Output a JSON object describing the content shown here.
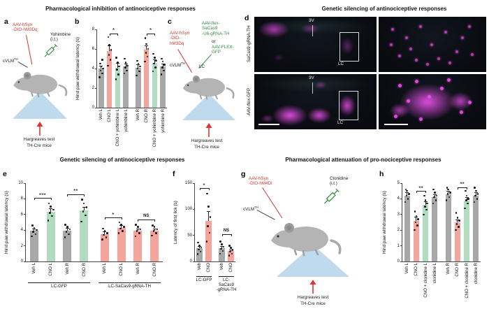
{
  "sections": {
    "top_left_title": "Pharmacological inhibition of antinociceptive responses",
    "top_right_title": "Genetic silencing of antinociceptive responses",
    "bottom_left_title": "Genetic silencing of antinociceptive responses",
    "bottom_right_title": "Pharmacological attenuation of pro-nociceptive responses"
  },
  "panel_letters": {
    "a": "a",
    "b": "b",
    "c": "c",
    "d": "d",
    "e": "e",
    "f": "f",
    "g": "g",
    "h": "h"
  },
  "colors": {
    "bar_gray": "#a8a8a8",
    "bar_red": "#f2a49d",
    "bar_green": "#b2dcc0",
    "accent_red": "#cf3a2f",
    "accent_green": "#2f8f3f",
    "platform_blue": "#bfdaec",
    "magenta": "#e84fe8"
  },
  "diagrams": {
    "a": {
      "virus": "AAV-hSyn\n-DIO-hM3Dq",
      "site": "cVLM",
      "site_sup": "TH",
      "drug": "Yohimbine\n(i.t.)",
      "test": "Hargreaves test",
      "mice": "TH-Cre mice"
    },
    "c": {
      "virus_red": "AAV-hSyn\n-DIO-\nhM3Dq",
      "virus_green": "AAV-flex-\nSaCas9\n-U6-gRNA-TH",
      "or_label": "or",
      "virus_green2": "AAV-FLEX-\nGFP",
      "site": "cVLM",
      "site_sup": "TH",
      "lc": "LC",
      "test": "Hargreaves test",
      "mice": "TH-Cre mice"
    },
    "g": {
      "virus": "AAV-hSyn\n-DIO-hM4Di",
      "site": "cVLM",
      "site_sup": "TH",
      "drug": "Clonidine\n(i.t.)",
      "test": "Hargreaves test",
      "mice": "TH-Cre mice"
    }
  },
  "microscopy": {
    "row1_label": "SaCas9-gRNA-TH",
    "row2_label": "AAV-flex-GFP",
    "labels": {
      "v3": "3V",
      "lc": "LC"
    }
  },
  "chart_data": [
    {
      "id": "b",
      "type": "bar",
      "ylabel": "Hind paw withdrawal latency (s)",
      "ylim": [
        0,
        8
      ],
      "yticks": [
        0,
        2,
        4,
        6,
        8
      ],
      "categories": [
        "Veh L",
        "CNO L",
        "CNO + yohimbine L",
        "yohimbine L",
        "Veh R",
        "CNO R",
        "CNO + yohimbine R",
        "yohimbine R"
      ],
      "values": [
        4.0,
        5.8,
        4.1,
        4.2,
        4.1,
        5.9,
        4.6,
        4.2
      ],
      "sem": [
        0.3,
        0.55,
        0.45,
        0.3,
        0.3,
        0.45,
        0.35,
        0.3
      ],
      "colors": [
        "gray",
        "red",
        "green",
        "gray",
        "gray",
        "red",
        "green",
        "gray"
      ],
      "points": [
        [
          3.1,
          3.5,
          3.8,
          4.0,
          4.2,
          4.5,
          4.9
        ],
        [
          4.3,
          4.9,
          5.4,
          5.9,
          6.4,
          7.2
        ],
        [
          2.9,
          3.4,
          3.9,
          4.2,
          4.6,
          5.1
        ],
        [
          3.5,
          3.8,
          4.1,
          4.3,
          4.6,
          5.0
        ],
        [
          3.3,
          3.7,
          4.0,
          4.2,
          4.5,
          4.8
        ],
        [
          4.7,
          5.2,
          5.6,
          6.0,
          6.5,
          7.1
        ],
        [
          3.7,
          4.1,
          4.5,
          4.8,
          5.1,
          5.5
        ],
        [
          3.4,
          3.8,
          4.1,
          4.4,
          4.7,
          5.0
        ]
      ],
      "group_gap_after": 3,
      "sig": [
        {
          "a": 1,
          "b": 2,
          "y": 7.6,
          "label": "*"
        },
        {
          "a": 5,
          "b": 6,
          "y": 7.6,
          "label": "*"
        }
      ],
      "groups": []
    },
    {
      "id": "e",
      "type": "bar",
      "ylabel": "Hind paw withdrawal latency (s)",
      "ylim": [
        0,
        10
      ],
      "yticks": [
        0,
        2,
        4,
        6,
        8,
        10
      ],
      "categories": [
        "Veh L",
        "CNO L",
        "Veh R",
        "CNO R",
        "Veh L",
        "CNO L",
        "Veh R",
        "CNO R"
      ],
      "values": [
        3.9,
        6.3,
        3.9,
        6.5,
        3.5,
        4.3,
        3.9,
        3.9
      ],
      "sem": [
        0.3,
        0.5,
        0.35,
        0.5,
        0.3,
        0.3,
        0.3,
        0.3
      ],
      "colors": [
        "gray",
        "green",
        "gray",
        "green",
        "red",
        "red",
        "red",
        "red"
      ],
      "points": [
        [
          3.2,
          3.5,
          3.8,
          4.0,
          4.3,
          4.6
        ],
        [
          5.2,
          5.8,
          6.2,
          6.6,
          7.0,
          7.4
        ],
        [
          3.1,
          3.5,
          3.8,
          4.1,
          4.4,
          4.7
        ],
        [
          5.1,
          5.9,
          6.4,
          6.9,
          7.4,
          7.9
        ],
        [
          2.8,
          3.1,
          3.4,
          3.6,
          3.9,
          4.2
        ],
        [
          3.6,
          3.9,
          4.2,
          4.4,
          4.7,
          5.0
        ],
        [
          3.2,
          3.6,
          3.9,
          4.1,
          4.4,
          4.7
        ],
        [
          3.3,
          3.6,
          3.9,
          4.1,
          4.4,
          4.6
        ]
      ],
      "group_gap_after": 3,
      "sig": [
        {
          "a": 0,
          "b": 1,
          "y": 8.1,
          "label": "***"
        },
        {
          "a": 2,
          "b": 3,
          "y": 8.6,
          "label": "**"
        },
        {
          "a": 4,
          "b": 5,
          "y": 5.6,
          "label": "*"
        },
        {
          "a": 6,
          "b": 7,
          "y": 5.4,
          "label": "NS"
        }
      ],
      "groups": [
        {
          "from": 0,
          "to": 3,
          "label": "LC-GFP"
        },
        {
          "from": 4,
          "to": 7,
          "label": "LC-SaCas9-gRNA-TH"
        }
      ]
    },
    {
      "id": "f",
      "type": "bar",
      "ylabel": "Latency of first lick (s)",
      "ylim": [
        0,
        150
      ],
      "yticks": [
        0,
        50,
        100,
        150
      ],
      "categories": [
        "Veh",
        "CNO",
        "Veh",
        "CNO"
      ],
      "values": [
        25,
        78,
        26,
        20
      ],
      "sem": [
        4,
        18,
        4,
        3
      ],
      "colors": [
        "gray",
        "red",
        "gray",
        "red"
      ],
      "points": [
        [
          14,
          19,
          23,
          27,
          31,
          36
        ],
        [
          38,
          55,
          68,
          85,
          105,
          130
        ],
        [
          15,
          20,
          24,
          28,
          33,
          38
        ],
        [
          11,
          15,
          19,
          22,
          26,
          30
        ]
      ],
      "group_gap_after": 1,
      "sig": [
        {
          "a": 0,
          "b": 1,
          "y": 140,
          "label": "*"
        },
        {
          "a": 2,
          "b": 3,
          "y": 52,
          "label": "NS"
        }
      ],
      "groups": [
        {
          "from": 0,
          "to": 1,
          "label": "LC-GFP"
        },
        {
          "from": 2,
          "to": 3,
          "label": "LC-\nSaCas9\n-gRNA-TH"
        }
      ]
    },
    {
      "id": "h",
      "type": "bar",
      "ylabel": "Hind paw withdrawal latency (s)",
      "ylim": [
        0,
        5
      ],
      "yticks": [
        0,
        1,
        2,
        3,
        4,
        5
      ],
      "categories": [
        "Veh L",
        "CNO L",
        "CNO + clonidine L",
        "clonidine L",
        "Veh R",
        "CNO R",
        "CNO + clonidine R",
        "clonidine R"
      ],
      "values": [
        4.2,
        2.6,
        3.6,
        4.1,
        4.3,
        2.5,
        3.9,
        4.2
      ],
      "sem": [
        0.2,
        0.25,
        0.25,
        0.2,
        0.2,
        0.2,
        0.2,
        0.2
      ],
      "colors": [
        "gray",
        "red",
        "green",
        "gray",
        "gray",
        "red",
        "green",
        "gray"
      ],
      "points": [
        [
          3.8,
          4.0,
          4.2,
          4.3,
          4.5,
          4.6
        ],
        [
          2.0,
          2.3,
          2.5,
          2.7,
          2.9,
          3.2
        ],
        [
          3.0,
          3.3,
          3.5,
          3.7,
          3.9,
          4.2
        ],
        [
          3.7,
          3.9,
          4.1,
          4.2,
          4.4,
          4.6
        ],
        [
          3.9,
          4.1,
          4.3,
          4.4,
          4.6,
          4.7
        ],
        [
          2.0,
          2.2,
          2.4,
          2.6,
          2.8,
          3.1
        ],
        [
          3.4,
          3.7,
          3.9,
          4.0,
          4.2,
          4.5
        ],
        [
          3.8,
          4.0,
          4.2,
          4.3,
          4.5,
          4.7
        ]
      ],
      "group_gap_after": 3,
      "sig": [
        {
          "a": 1,
          "b": 2,
          "y": 4.5,
          "label": "**"
        },
        {
          "a": 5,
          "b": 6,
          "y": 4.75,
          "label": "**"
        }
      ],
      "groups": []
    }
  ]
}
